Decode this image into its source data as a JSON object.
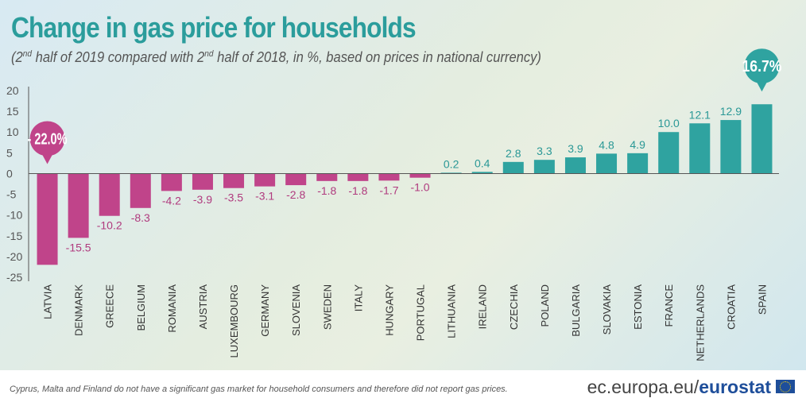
{
  "header": {
    "title": "Change in gas price for households",
    "subtitle_part1": "(2",
    "subtitle_sup1": "nd",
    "subtitle_part2": " half of 2019 compared with 2",
    "subtitle_sup2": "nd",
    "subtitle_part3": " half of 2018, in %, based on prices in national currency)"
  },
  "footer": {
    "note": "Cyprus, Malta and Finland do not have a significant gas market for household consumers and therefore did not report gas prices.",
    "brand_prefix": "ec.europa.eu/",
    "brand_name": "eurostat"
  },
  "colors": {
    "negative": "#c0448a",
    "positive": "#2fa3a0",
    "negative_label": "#b03a7e",
    "positive_label": "#2a9896",
    "axis": "#555555",
    "grid": "#777777"
  },
  "chart_data": {
    "type": "bar",
    "title": "Change in gas price for households",
    "categories": [
      "LATVIA",
      "DENMARK",
      "GREECE",
      "BELGIUM",
      "ROMANIA",
      "AUSTRIA",
      "LUXEMBOURG",
      "GERMANY",
      "SLOVENIA",
      "SWEDEN",
      "ITALY",
      "HUNGARY",
      "PORTUGAL",
      "LITHUANIA",
      "IRELAND",
      "CZECHIA",
      "POLAND",
      "BULGARIA",
      "SLOVAKIA",
      "ESTONIA",
      "FRANCE",
      "NETHERLANDS",
      "CROATIA",
      "SPAIN"
    ],
    "values": [
      -22.0,
      -15.5,
      -10.2,
      -8.3,
      -4.2,
      -3.9,
      -3.5,
      -3.1,
      -2.8,
      -1.8,
      -1.8,
      -1.7,
      -1.0,
      0.2,
      0.4,
      2.8,
      3.3,
      3.9,
      4.8,
      4.9,
      10.0,
      12.1,
      12.9,
      16.7
    ],
    "labels": [
      "- 22.0%",
      "-15.5",
      "-10.2",
      "-8.3",
      "-4.2",
      "-3.9",
      "-3.5",
      "-3.1",
      "-2.8",
      "-1.8",
      "-1.8",
      "-1.7",
      "-1.0",
      "0.2",
      "0.4",
      "2.8",
      "3.3",
      "3.9",
      "4.8",
      "4.9",
      "10.0",
      "12.1",
      "12.9",
      "16.7%"
    ],
    "highlighted": [
      "LATVIA",
      "SPAIN"
    ],
    "yticks": [
      "20",
      "15",
      "10",
      "5",
      "0",
      "-5",
      "-10",
      "-15",
      "-20",
      "-25"
    ],
    "ylim": [
      -25,
      20
    ],
    "xlabel": "",
    "ylabel": "",
    "grid": false,
    "legend": "none"
  }
}
